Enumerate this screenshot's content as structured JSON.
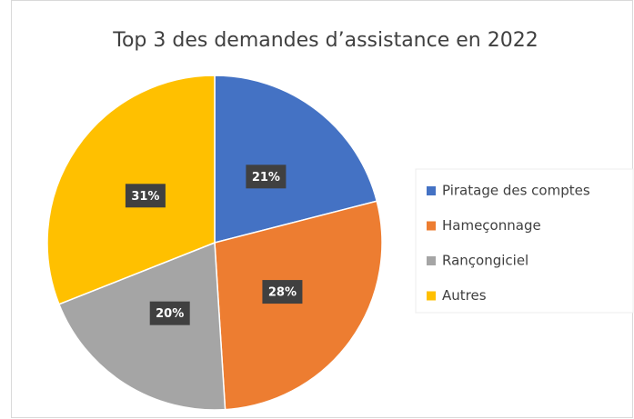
{
  "chart_data": {
    "type": "pie",
    "title": "Top 3 des demandes d’assistance en 2022",
    "categories": [
      "Piratage des comptes",
      "Hameçonnage",
      "Rançongiciel",
      "Autres"
    ],
    "values": [
      21,
      28,
      20,
      31
    ],
    "value_labels": [
      "21%",
      "28%",
      "20%",
      "31%"
    ],
    "colors": [
      "#4472c4",
      "#ed7d31",
      "#a5a5a5",
      "#ffc000"
    ],
    "legend": "right"
  }
}
